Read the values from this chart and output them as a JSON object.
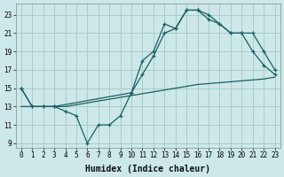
{
  "xlabel": "Humidex (Indice chaleur)",
  "bg_color": "#cce8e8",
  "grid_color": "#aacccc",
  "line_color": "#1a6060",
  "xlim": [
    -0.5,
    23.5
  ],
  "ylim": [
    8.5,
    24.2
  ],
  "xticks": [
    0,
    1,
    2,
    3,
    4,
    5,
    6,
    7,
    8,
    9,
    10,
    11,
    12,
    13,
    14,
    15,
    16,
    17,
    18,
    19,
    20,
    21,
    22,
    23
  ],
  "yticks": [
    9,
    11,
    13,
    15,
    17,
    19,
    21,
    23
  ],
  "line1_x": [
    0,
    1,
    2,
    3,
    4,
    5,
    6,
    7,
    8,
    9,
    10,
    11,
    12,
    13,
    14,
    15,
    16,
    17,
    18,
    19,
    20,
    21,
    22,
    23
  ],
  "line1_y": [
    15,
    13,
    13,
    13,
    12.5,
    12,
    9,
    11,
    11,
    12,
    14.5,
    18,
    19,
    22,
    21.5,
    23.5,
    23.5,
    23,
    22,
    21,
    21,
    19,
    17.5,
    16.5
  ],
  "line2_x": [
    0,
    1,
    2,
    3,
    10,
    11,
    12,
    13,
    14,
    15,
    16,
    17,
    18,
    19,
    20,
    21,
    22,
    23
  ],
  "line2_y": [
    15,
    13,
    13,
    13,
    14.5,
    16.5,
    18.5,
    21,
    21.5,
    23.5,
    23.5,
    22.5,
    22,
    21,
    21,
    21,
    19,
    17
  ],
  "line3_x": [
    0,
    1,
    2,
    3,
    4,
    5,
    6,
    7,
    8,
    9,
    10,
    11,
    12,
    13,
    14,
    15,
    16,
    17,
    18,
    19,
    20,
    21,
    22,
    23
  ],
  "line3_y": [
    13,
    13,
    13,
    13,
    13,
    13.2,
    13.4,
    13.6,
    13.8,
    14,
    14.2,
    14.4,
    14.6,
    14.8,
    15,
    15.2,
    15.4,
    15.5,
    15.6,
    15.7,
    15.8,
    15.9,
    16.0,
    16.2
  ]
}
